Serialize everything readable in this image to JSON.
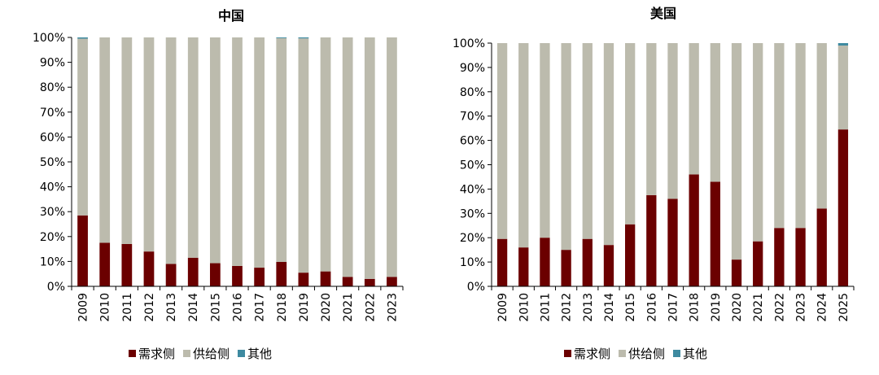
{
  "colors": {
    "demand": "#6b0000",
    "supply": "#bcbbad",
    "other": "#3e8aa0",
    "axis": "#000000"
  },
  "chart_data": [
    {
      "type": "bar",
      "stacked": true,
      "title": "中国",
      "xlabel": "",
      "ylabel": "",
      "ylim": [
        0,
        100
      ],
      "yticks": [
        "0%",
        "10%",
        "20%",
        "30%",
        "40%",
        "50%",
        "60%",
        "70%",
        "80%",
        "90%",
        "100%"
      ],
      "categories": [
        "2009",
        "2010",
        "2011",
        "2012",
        "2013",
        "2014",
        "2015",
        "2016",
        "2017",
        "2018",
        "2019",
        "2020",
        "2021",
        "2022",
        "2023"
      ],
      "legend": [
        "需求侧",
        "供给侧",
        "其他"
      ],
      "legend_position": "bottom",
      "series": [
        {
          "name": "需求侧",
          "values": [
            28.5,
            17.5,
            17,
            14,
            9,
            11.5,
            9.3,
            8.2,
            7.5,
            9.8,
            5.5,
            6,
            3.8,
            3,
            3.8
          ]
        },
        {
          "name": "供给侧",
          "values": [
            71,
            82.5,
            83,
            86,
            91,
            88.5,
            90.7,
            91.8,
            92.5,
            89.9,
            94.1,
            94,
            96.2,
            97,
            96.2
          ]
        },
        {
          "name": "其他",
          "values": [
            0.5,
            0,
            0,
            0,
            0,
            0,
            0,
            0,
            0,
            0.3,
            0.4,
            0,
            0,
            0,
            0
          ]
        }
      ]
    },
    {
      "type": "bar",
      "stacked": true,
      "title": "美国",
      "xlabel": "",
      "ylabel": "",
      "ylim": [
        0,
        100
      ],
      "yticks": [
        "0%",
        "10%",
        "20%",
        "30%",
        "40%",
        "50%",
        "60%",
        "70%",
        "80%",
        "90%",
        "100%"
      ],
      "categories": [
        "2009",
        "2010",
        "2011",
        "2012",
        "2013",
        "2014",
        "2015",
        "2016",
        "2017",
        "2018",
        "2019",
        "2020",
        "2021",
        "2022",
        "2023",
        "2024",
        "2025"
      ],
      "legend": [
        "需求侧",
        "供给侧",
        "其他"
      ],
      "legend_position": "bottom",
      "series": [
        {
          "name": "需求侧",
          "values": [
            19.5,
            16,
            20,
            15,
            19.5,
            17,
            25.5,
            37.5,
            36,
            46,
            43,
            11,
            18.5,
            24,
            24,
            32,
            64.5
          ]
        },
        {
          "name": "供给侧",
          "values": [
            80.5,
            84,
            80,
            85,
            80.5,
            83,
            74.5,
            62.5,
            64,
            54,
            57,
            89,
            81.5,
            76,
            76,
            68,
            34.5
          ]
        },
        {
          "name": "其他",
          "values": [
            0,
            0,
            0,
            0,
            0,
            0,
            0,
            0,
            0,
            0,
            0,
            0,
            0,
            0,
            0,
            0,
            1
          ]
        }
      ]
    }
  ]
}
